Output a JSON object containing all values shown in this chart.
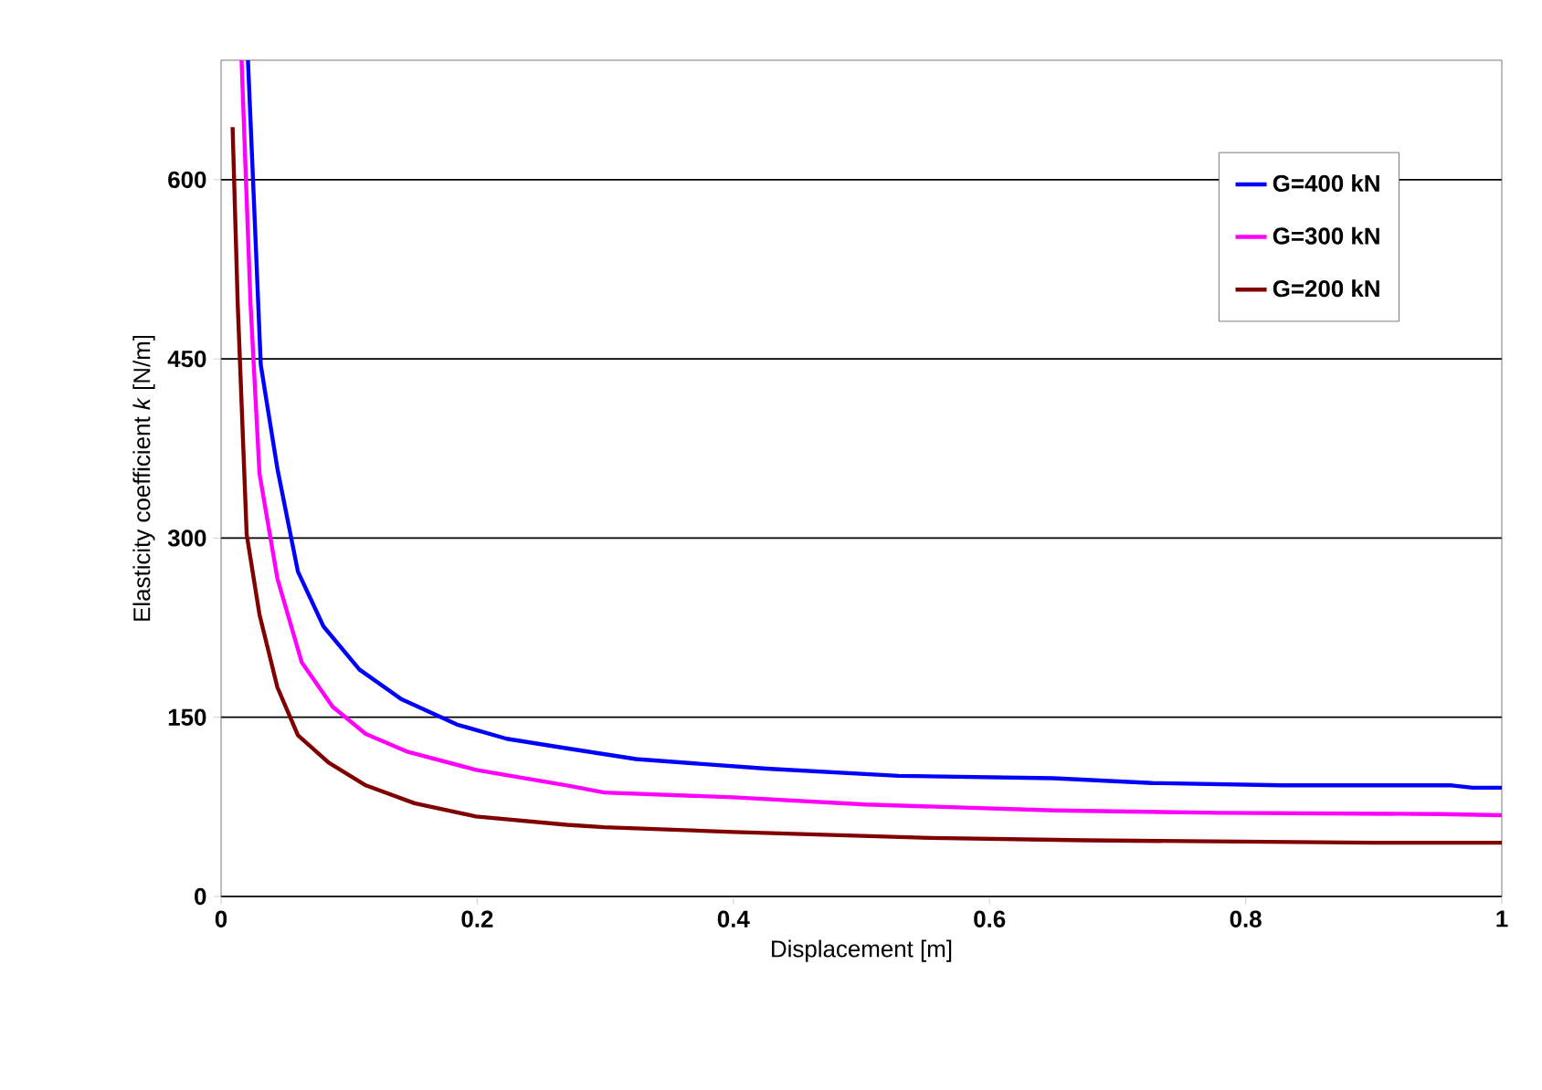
{
  "chart_data": {
    "type": "line",
    "xlabel": "Displacement [m]",
    "ylabel": "Elasticity coefficient *k* [N/m]",
    "xlim": [
      0,
      1
    ],
    "ylim": [
      0,
      700
    ],
    "xticks": [
      0,
      0.2,
      0.4,
      0.6,
      0.8,
      1
    ],
    "yticks": [
      0,
      150,
      300,
      450,
      600
    ],
    "grid": "y",
    "legend": "top right",
    "marker": "none",
    "line_style": "solid",
    "series": [
      {
        "name": "G=400 kN",
        "color": "#0000ff",
        "x": [
          0.021,
          0.027,
          0.031,
          0.044,
          0.06,
          0.08,
          0.108,
          0.141,
          0.184,
          0.223,
          0.27,
          0.324,
          0.426,
          0.529,
          0.65,
          0.727,
          0.829,
          0.961,
          0.977,
          1.0
        ],
        "values": [
          700,
          548,
          445,
          358,
          272,
          226,
          190,
          165,
          144,
          132,
          124,
          115,
          107,
          101,
          99,
          95,
          93,
          93,
          91,
          91
        ]
      },
      {
        "name": "G=300 kN",
        "color": "#ff00ff",
        "x": [
          0.016,
          0.023,
          0.03,
          0.044,
          0.063,
          0.087,
          0.113,
          0.146,
          0.199,
          0.27,
          0.299,
          0.4,
          0.503,
          0.65,
          0.779,
          0.951,
          1.0
        ],
        "values": [
          700,
          496,
          354,
          266,
          196,
          159,
          136,
          121,
          106,
          93,
          87,
          83,
          77,
          72,
          70,
          69,
          68
        ]
      },
      {
        "name": "G=200 kN",
        "color": "#800000",
        "x": [
          0.009,
          0.013,
          0.02,
          0.03,
          0.044,
          0.06,
          0.084,
          0.113,
          0.151,
          0.199,
          0.27,
          0.299,
          0.4,
          0.554,
          0.676,
          0.9,
          1.0
        ],
        "values": [
          644,
          496,
          303,
          236,
          175,
          135,
          112,
          93,
          78,
          67,
          60,
          58,
          54,
          49,
          47,
          45,
          45
        ]
      }
    ]
  }
}
